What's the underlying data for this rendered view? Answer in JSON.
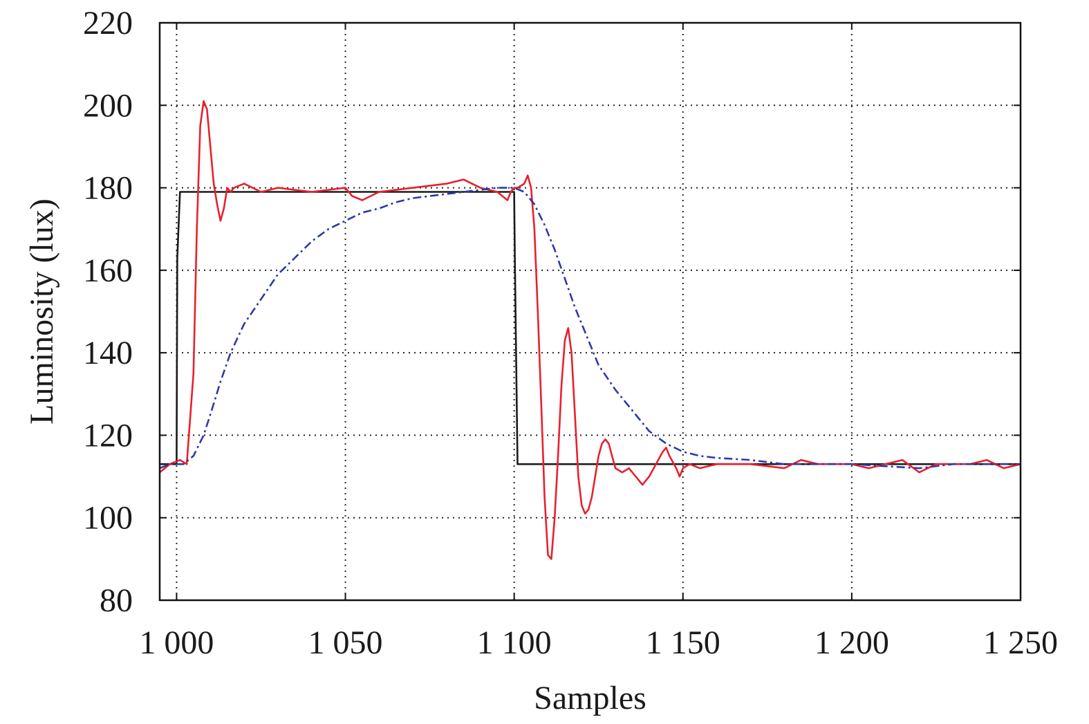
{
  "chart_data": {
    "type": "line",
    "xlabel": "Samples",
    "ylabel": "Luminosity (lux)",
    "xlim": [
      995,
      1250
    ],
    "ylim": [
      80,
      220
    ],
    "x_ticks": [
      1000,
      1050,
      1100,
      1150,
      1200,
      1250
    ],
    "x_tick_labels": [
      "1 000",
      "1 050",
      "1 100",
      "1 150",
      "1 200",
      "1 250"
    ],
    "y_ticks": [
      80,
      100,
      120,
      140,
      160,
      180,
      200,
      220
    ],
    "y_tick_labels": [
      "80",
      "100",
      "120",
      "140",
      "160",
      "180",
      "200",
      "220"
    ],
    "grid": true,
    "series": [
      {
        "color": "#1a1a1a",
        "style": "solid",
        "points": [
          [
            995,
            113
          ],
          [
            1000,
            113
          ],
          [
            1000.2,
            163
          ],
          [
            1001,
            179
          ],
          [
            1100,
            179
          ],
          [
            1100.2,
            163
          ],
          [
            1101,
            113
          ],
          [
            1250,
            113
          ]
        ]
      },
      {
        "color": "#e8202e",
        "style": "solid",
        "points": [
          [
            995,
            111
          ],
          [
            998,
            113
          ],
          [
            1001,
            114
          ],
          [
            1003,
            113
          ],
          [
            1005,
            135
          ],
          [
            1006,
            170
          ],
          [
            1007,
            195
          ],
          [
            1008,
            201
          ],
          [
            1009,
            199
          ],
          [
            1010,
            190
          ],
          [
            1011,
            181
          ],
          [
            1012,
            176
          ],
          [
            1013,
            172
          ],
          [
            1014,
            175
          ],
          [
            1015,
            180
          ],
          [
            1016,
            179
          ],
          [
            1017,
            180
          ],
          [
            1020,
            181
          ],
          [
            1025,
            179
          ],
          [
            1030,
            180
          ],
          [
            1040,
            179
          ],
          [
            1050,
            180
          ],
          [
            1052,
            178
          ],
          [
            1055,
            177
          ],
          [
            1060,
            179
          ],
          [
            1070,
            180
          ],
          [
            1080,
            181
          ],
          [
            1085,
            182
          ],
          [
            1090,
            180
          ],
          [
            1095,
            179
          ],
          [
            1098,
            177
          ],
          [
            1099,
            179
          ],
          [
            1100,
            180
          ],
          [
            1101,
            180
          ],
          [
            1103,
            181
          ],
          [
            1104,
            183
          ],
          [
            1105,
            180
          ],
          [
            1106,
            170
          ],
          [
            1107,
            150
          ],
          [
            1108,
            128
          ],
          [
            1109,
            105
          ],
          [
            1110,
            91
          ],
          [
            1111,
            90
          ],
          [
            1112,
            100
          ],
          [
            1113,
            115
          ],
          [
            1114,
            132
          ],
          [
            1115,
            143
          ],
          [
            1116,
            146
          ],
          [
            1117,
            140
          ],
          [
            1118,
            125
          ],
          [
            1119,
            110
          ],
          [
            1120,
            103
          ],
          [
            1121,
            101
          ],
          [
            1122,
            102
          ],
          [
            1123,
            105
          ],
          [
            1124,
            110
          ],
          [
            1125,
            115
          ],
          [
            1126,
            118
          ],
          [
            1127,
            119
          ],
          [
            1128,
            118
          ],
          [
            1129,
            115
          ],
          [
            1130,
            112
          ],
          [
            1132,
            111
          ],
          [
            1134,
            112
          ],
          [
            1136,
            110
          ],
          [
            1138,
            108
          ],
          [
            1140,
            110
          ],
          [
            1142,
            113
          ],
          [
            1144,
            116
          ],
          [
            1145,
            117
          ],
          [
            1146,
            115
          ],
          [
            1148,
            112
          ],
          [
            1149,
            110
          ],
          [
            1150,
            112
          ],
          [
            1152,
            113
          ],
          [
            1155,
            112
          ],
          [
            1160,
            113
          ],
          [
            1170,
            113
          ],
          [
            1180,
            112
          ],
          [
            1185,
            114
          ],
          [
            1190,
            113
          ],
          [
            1200,
            113
          ],
          [
            1205,
            112
          ],
          [
            1210,
            113
          ],
          [
            1215,
            114
          ],
          [
            1220,
            111
          ],
          [
            1225,
            113
          ],
          [
            1230,
            113
          ],
          [
            1235,
            113
          ],
          [
            1240,
            114
          ],
          [
            1245,
            112
          ],
          [
            1250,
            113
          ]
        ]
      },
      {
        "color": "#2b3aa6",
        "style": "dashdot",
        "points": [
          [
            995,
            112
          ],
          [
            998,
            113
          ],
          [
            1002,
            113
          ],
          [
            1005,
            115
          ],
          [
            1008,
            120
          ],
          [
            1010,
            125
          ],
          [
            1013,
            133
          ],
          [
            1016,
            140
          ],
          [
            1020,
            147
          ],
          [
            1025,
            153
          ],
          [
            1030,
            159
          ],
          [
            1035,
            163
          ],
          [
            1040,
            167
          ],
          [
            1045,
            170
          ],
          [
            1050,
            172
          ],
          [
            1055,
            174
          ],
          [
            1060,
            175
          ],
          [
            1065,
            176.5
          ],
          [
            1070,
            177.5
          ],
          [
            1075,
            178
          ],
          [
            1080,
            178.5
          ],
          [
            1085,
            179
          ],
          [
            1090,
            179.5
          ],
          [
            1095,
            180
          ],
          [
            1100,
            180
          ],
          [
            1103,
            179
          ],
          [
            1106,
            176
          ],
          [
            1109,
            171
          ],
          [
            1112,
            165
          ],
          [
            1115,
            158
          ],
          [
            1118,
            151
          ],
          [
            1121,
            145
          ],
          [
            1125,
            137
          ],
          [
            1130,
            131
          ],
          [
            1135,
            126
          ],
          [
            1140,
            121
          ],
          [
            1145,
            118
          ],
          [
            1150,
            116
          ],
          [
            1155,
            115
          ],
          [
            1160,
            114.5
          ],
          [
            1170,
            114
          ],
          [
            1180,
            113
          ],
          [
            1190,
            113
          ],
          [
            1200,
            113
          ],
          [
            1210,
            112.5
          ],
          [
            1220,
            112
          ],
          [
            1230,
            113
          ],
          [
            1240,
            113
          ],
          [
            1250,
            113
          ]
        ]
      }
    ]
  }
}
